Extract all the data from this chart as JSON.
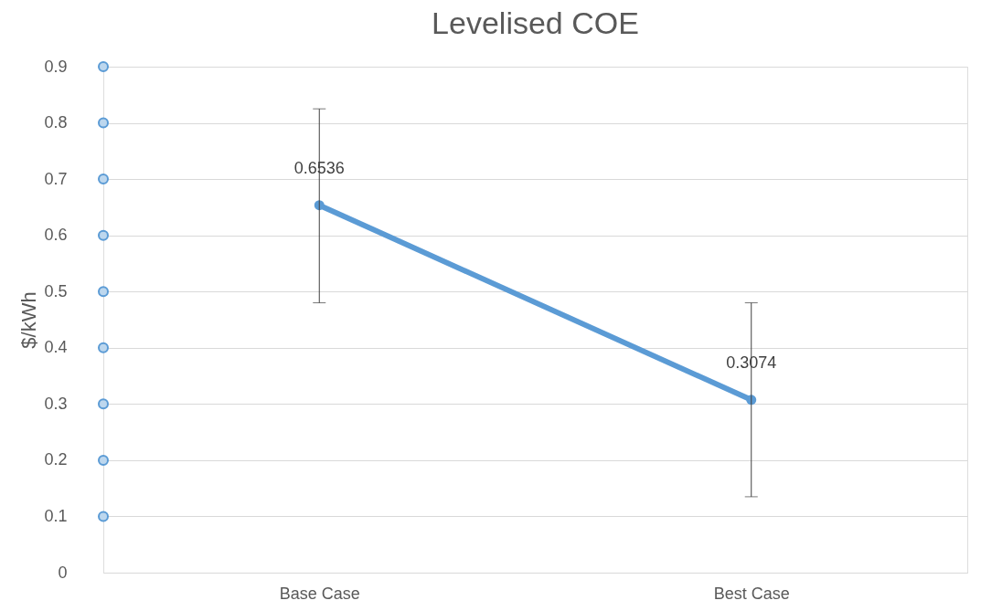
{
  "chart_data": {
    "type": "line",
    "title": "Levelised COE",
    "ylabel": "$/kWh",
    "categories": [
      "Base Case",
      "Best Case"
    ],
    "series": [
      {
        "color": "#5b9bd5",
        "values": [
          0.6536,
          0.3074
        ],
        "errors": [
          [
            0.48,
            0.825
          ],
          [
            0.135,
            0.48
          ]
        ],
        "value_labels": [
          "0.6536",
          "0.3074"
        ]
      }
    ],
    "ylim": [
      0,
      0.9
    ],
    "yticks": [
      0,
      0.1,
      0.2,
      0.3,
      0.4,
      0.5,
      0.6,
      0.7,
      0.8,
      0.9
    ],
    "grid": "y",
    "marker": "circle"
  }
}
